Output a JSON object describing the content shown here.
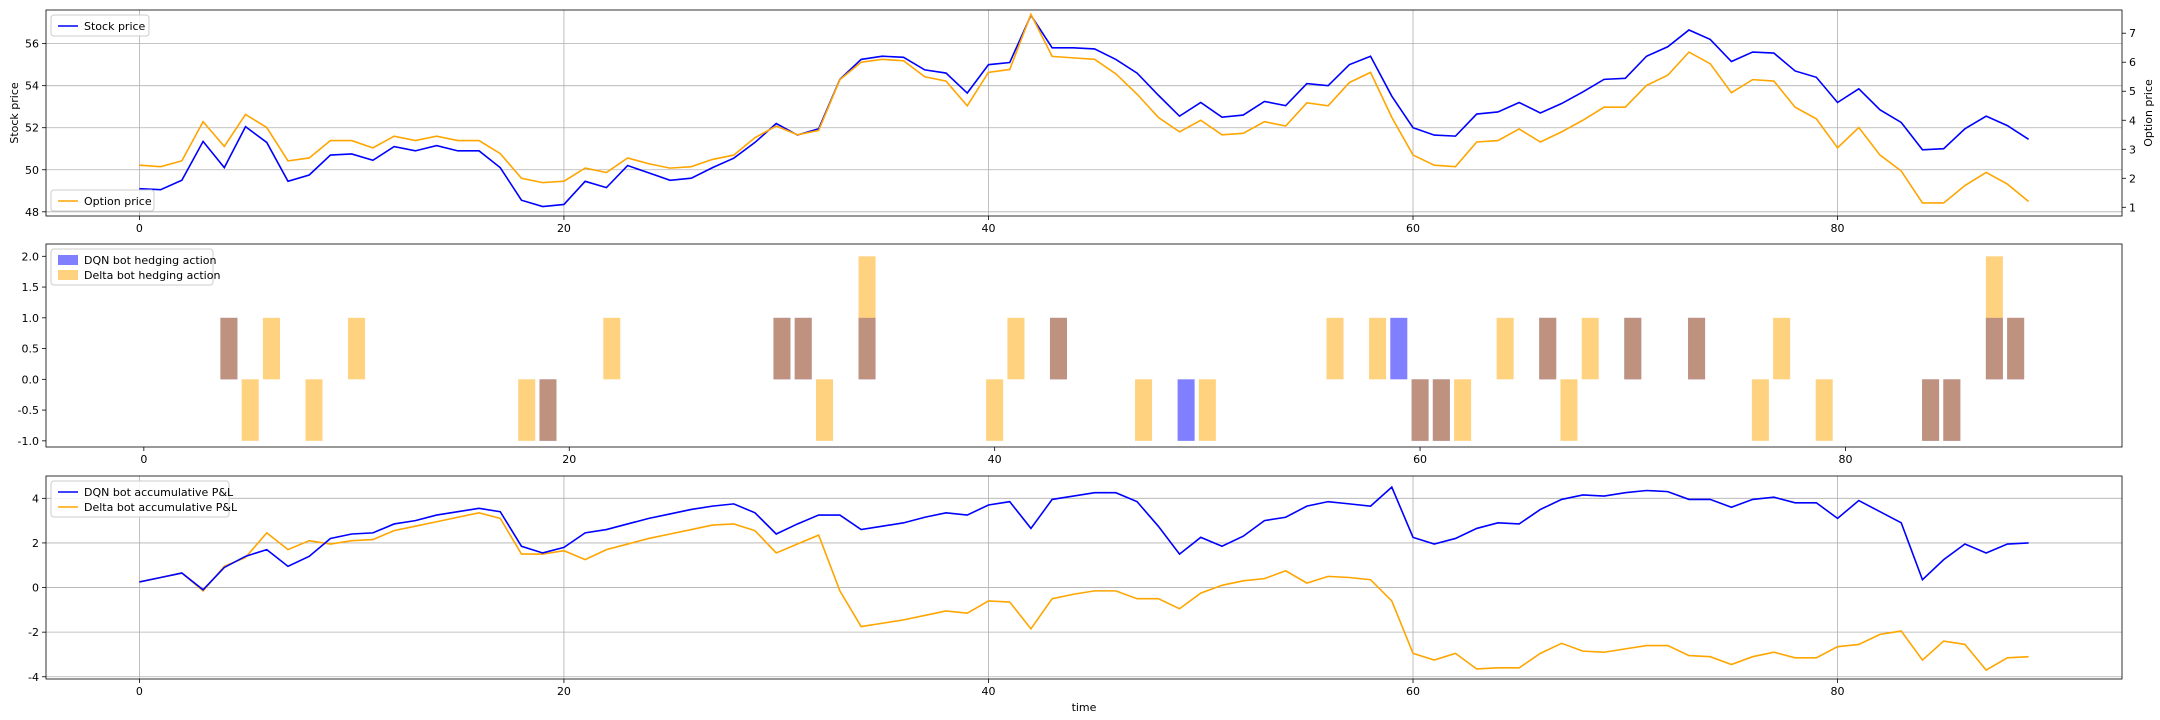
{
  "colors": {
    "dqn": "#0000ff",
    "delta": "#ffa500",
    "grid": "#b0b0b0",
    "legend_border": "#cccccc"
  },
  "chart_data": [
    {
      "type": "line",
      "title": "",
      "xlabel": "",
      "ylabel": "Stock price",
      "y2label": "Option price",
      "xlim": [
        -4.4,
        93.4
      ],
      "ylim": [
        47.8,
        57.6
      ],
      "y2lim": [
        0.7,
        7.8
      ],
      "xticks": [
        0,
        20,
        40,
        60,
        80
      ],
      "yticks": [
        48,
        50,
        52,
        54,
        56
      ],
      "y2ticks": [
        1,
        2,
        3,
        4,
        5,
        6,
        7
      ],
      "grid": true,
      "legend": [
        {
          "label": "Stock price",
          "placement": "upper-left"
        },
        {
          "label": "Option price",
          "placement": "lower-left"
        }
      ],
      "series": [
        {
          "name": "Stock price",
          "axis": "left",
          "color": "#0000ff",
          "values": [
            49.1,
            49.05,
            49.5,
            51.35,
            50.1,
            52.05,
            51.3,
            49.45,
            49.75,
            50.7,
            50.75,
            50.45,
            51.1,
            50.9,
            51.15,
            50.9,
            50.9,
            50.1,
            48.55,
            48.25,
            48.35,
            49.45,
            49.15,
            50.2,
            49.85,
            49.5,
            49.6,
            50.1,
            50.55,
            51.3,
            52.2,
            51.65,
            51.95,
            54.3,
            55.25,
            55.4,
            55.35,
            54.75,
            54.6,
            53.65,
            55.0,
            55.1,
            57.35,
            55.8,
            55.8,
            55.75,
            55.25,
            54.6,
            53.55,
            52.55,
            53.2,
            52.5,
            52.6,
            53.25,
            53.05,
            54.1,
            54.0,
            55.0,
            55.4,
            53.5,
            52.0,
            51.65,
            51.6,
            52.65,
            52.75,
            53.2,
            52.7,
            53.15,
            53.7,
            54.3,
            54.35,
            55.4,
            55.85,
            56.65,
            56.2,
            55.15,
            55.6,
            55.55,
            54.7,
            54.4,
            53.2,
            53.85,
            52.85,
            52.25,
            50.95,
            51.0,
            51.95,
            52.55,
            52.1,
            51.45
          ]
        },
        {
          "name": "Option price",
          "axis": "right",
          "color": "#ffa500",
          "values": [
            2.45,
            2.4,
            2.6,
            3.95,
            3.1,
            4.2,
            3.75,
            2.6,
            2.7,
            3.3,
            3.3,
            3.05,
            3.45,
            3.3,
            3.45,
            3.3,
            3.3,
            2.85,
            2.0,
            1.85,
            1.9,
            2.35,
            2.2,
            2.7,
            2.5,
            2.35,
            2.4,
            2.65,
            2.8,
            3.4,
            3.8,
            3.5,
            3.65,
            5.4,
            6.0,
            6.1,
            6.05,
            5.5,
            5.35,
            4.5,
            5.65,
            5.75,
            7.65,
            6.2,
            6.15,
            6.1,
            5.6,
            4.9,
            4.1,
            3.6,
            4.0,
            3.5,
            3.55,
            3.95,
            3.8,
            4.6,
            4.5,
            5.3,
            5.65,
            4.1,
            2.8,
            2.45,
            2.4,
            3.25,
            3.3,
            3.7,
            3.25,
            3.6,
            4.0,
            4.45,
            4.45,
            5.2,
            5.55,
            6.35,
            5.95,
            4.95,
            5.4,
            5.35,
            4.45,
            4.05,
            3.05,
            3.75,
            2.8,
            2.25,
            1.15,
            1.15,
            1.75,
            2.2,
            1.8,
            1.2
          ]
        }
      ]
    },
    {
      "type": "bar",
      "title": "",
      "xlabel": "",
      "ylabel": "",
      "xlim": [
        -4.6,
        93.0
      ],
      "ylim": [
        -1.1,
        2.2
      ],
      "xticks": [
        0,
        20,
        40,
        60,
        80
      ],
      "yticks": [
        -1.0,
        -0.5,
        0.0,
        0.5,
        1.0,
        1.5,
        2.0
      ],
      "ytick_labels": [
        "-1.0",
        "-0.5",
        "0.0",
        "0.5",
        "1.0",
        "1.5",
        "2.0"
      ],
      "grid": false,
      "legend": [
        {
          "label": "DQN bot hedging action",
          "placement": "upper-left"
        },
        {
          "label": "Delta bot hedging action",
          "placement": "upper-left"
        }
      ],
      "series": [
        {
          "name": "DQN bot hedging action",
          "color": "#0000ff",
          "opacity": 0.5,
          "bars": [
            [
              4,
              1
            ],
            [
              19,
              -1
            ],
            [
              30,
              1
            ],
            [
              31,
              1
            ],
            [
              34,
              1
            ],
            [
              43,
              1
            ],
            [
              49,
              -1
            ],
            [
              59,
              1
            ],
            [
              60,
              -1
            ],
            [
              61,
              -1
            ],
            [
              66,
              1
            ],
            [
              70,
              1
            ],
            [
              73,
              1
            ],
            [
              84,
              -1
            ],
            [
              85,
              -1
            ],
            [
              87,
              1
            ],
            [
              88,
              1
            ]
          ]
        },
        {
          "name": "Delta bot hedging action",
          "color": "#ffa500",
          "opacity": 0.5,
          "bars": [
            [
              4,
              1
            ],
            [
              5,
              -1
            ],
            [
              6,
              1
            ],
            [
              8,
              -1
            ],
            [
              10,
              1
            ],
            [
              18,
              -1
            ],
            [
              19,
              -1
            ],
            [
              22,
              1
            ],
            [
              30,
              1
            ],
            [
              31,
              1
            ],
            [
              32,
              -1
            ],
            [
              34,
              2
            ],
            [
              40,
              -1
            ],
            [
              41,
              1
            ],
            [
              43,
              1
            ],
            [
              47,
              -1
            ],
            [
              50,
              -1
            ],
            [
              56,
              1
            ],
            [
              58,
              1
            ],
            [
              60,
              -1
            ],
            [
              61,
              -1
            ],
            [
              62,
              -1
            ],
            [
              64,
              1
            ],
            [
              66,
              1
            ],
            [
              67,
              -1
            ],
            [
              68,
              1
            ],
            [
              70,
              1
            ],
            [
              73,
              1
            ],
            [
              76,
              -1
            ],
            [
              77,
              1
            ],
            [
              79,
              -1
            ],
            [
              84,
              -1
            ],
            [
              85,
              -1
            ],
            [
              87,
              2
            ],
            [
              88,
              1
            ]
          ]
        }
      ]
    },
    {
      "type": "line",
      "title": "",
      "xlabel": "time",
      "ylabel": "",
      "xlim": [
        -4.4,
        93.4
      ],
      "ylim": [
        -4.1,
        5.0
      ],
      "xticks": [
        0,
        20,
        40,
        60,
        80
      ],
      "yticks": [
        -4,
        -2,
        0,
        2,
        4
      ],
      "grid": true,
      "legend": [
        {
          "label": "DQN bot accumulative P&L",
          "placement": "upper-left"
        },
        {
          "label": "Delta bot accumulative P&L",
          "placement": "upper-left"
        }
      ],
      "series": [
        {
          "name": "DQN bot accumulative P&L",
          "color": "#0000ff",
          "values": [
            0.25,
            0.45,
            0.65,
            -0.1,
            0.9,
            1.4,
            1.7,
            0.95,
            1.4,
            2.2,
            2.4,
            2.45,
            2.85,
            3.0,
            3.25,
            3.4,
            3.55,
            3.4,
            1.85,
            1.55,
            1.8,
            2.45,
            2.6,
            2.85,
            3.1,
            3.3,
            3.5,
            3.65,
            3.75,
            3.35,
            2.4,
            2.85,
            3.25,
            3.25,
            2.6,
            2.75,
            2.9,
            3.15,
            3.35,
            3.25,
            3.7,
            3.85,
            2.65,
            3.95,
            4.1,
            4.25,
            4.25,
            3.85,
            2.75,
            1.5,
            2.25,
            1.85,
            2.3,
            3.0,
            3.15,
            3.65,
            3.85,
            3.75,
            3.65,
            4.5,
            2.25,
            1.95,
            2.2,
            2.65,
            2.9,
            2.85,
            3.5,
            3.95,
            4.15,
            4.1,
            4.25,
            4.35,
            4.3,
            3.95,
            3.95,
            3.6,
            3.95,
            4.05,
            3.8,
            3.8,
            3.1,
            3.9,
            3.4,
            2.9,
            0.35,
            1.25,
            1.95,
            1.55,
            1.95,
            2.0
          ]
        },
        {
          "name": "Delta bot accumulative P&L",
          "color": "#ffa500",
          "values": [
            0.25,
            0.45,
            0.65,
            -0.15,
            0.95,
            1.35,
            2.45,
            1.7,
            2.1,
            1.95,
            2.1,
            2.15,
            2.55,
            2.75,
            2.95,
            3.15,
            3.35,
            3.1,
            1.5,
            1.5,
            1.65,
            1.25,
            1.7,
            1.95,
            2.2,
            2.4,
            2.6,
            2.8,
            2.85,
            2.55,
            1.55,
            1.95,
            2.35,
            -0.15,
            -1.75,
            -1.6,
            -1.45,
            -1.25,
            -1.05,
            -1.15,
            -0.6,
            -0.65,
            -1.85,
            -0.5,
            -0.3,
            -0.15,
            -0.15,
            -0.5,
            -0.5,
            -0.95,
            -0.25,
            0.1,
            0.3,
            0.4,
            0.75,
            0.2,
            0.5,
            0.45,
            0.35,
            -0.6,
            -2.95,
            -3.25,
            -2.95,
            -3.65,
            -3.6,
            -3.6,
            -2.95,
            -2.5,
            -2.85,
            -2.9,
            -2.75,
            -2.6,
            -2.6,
            -3.05,
            -3.1,
            -3.45,
            -3.1,
            -2.9,
            -3.15,
            -3.15,
            -2.65,
            -2.55,
            -2.1,
            -1.95,
            -3.25,
            -2.4,
            -2.55,
            -3.7,
            -3.15,
            -3.1
          ]
        }
      ]
    }
  ]
}
